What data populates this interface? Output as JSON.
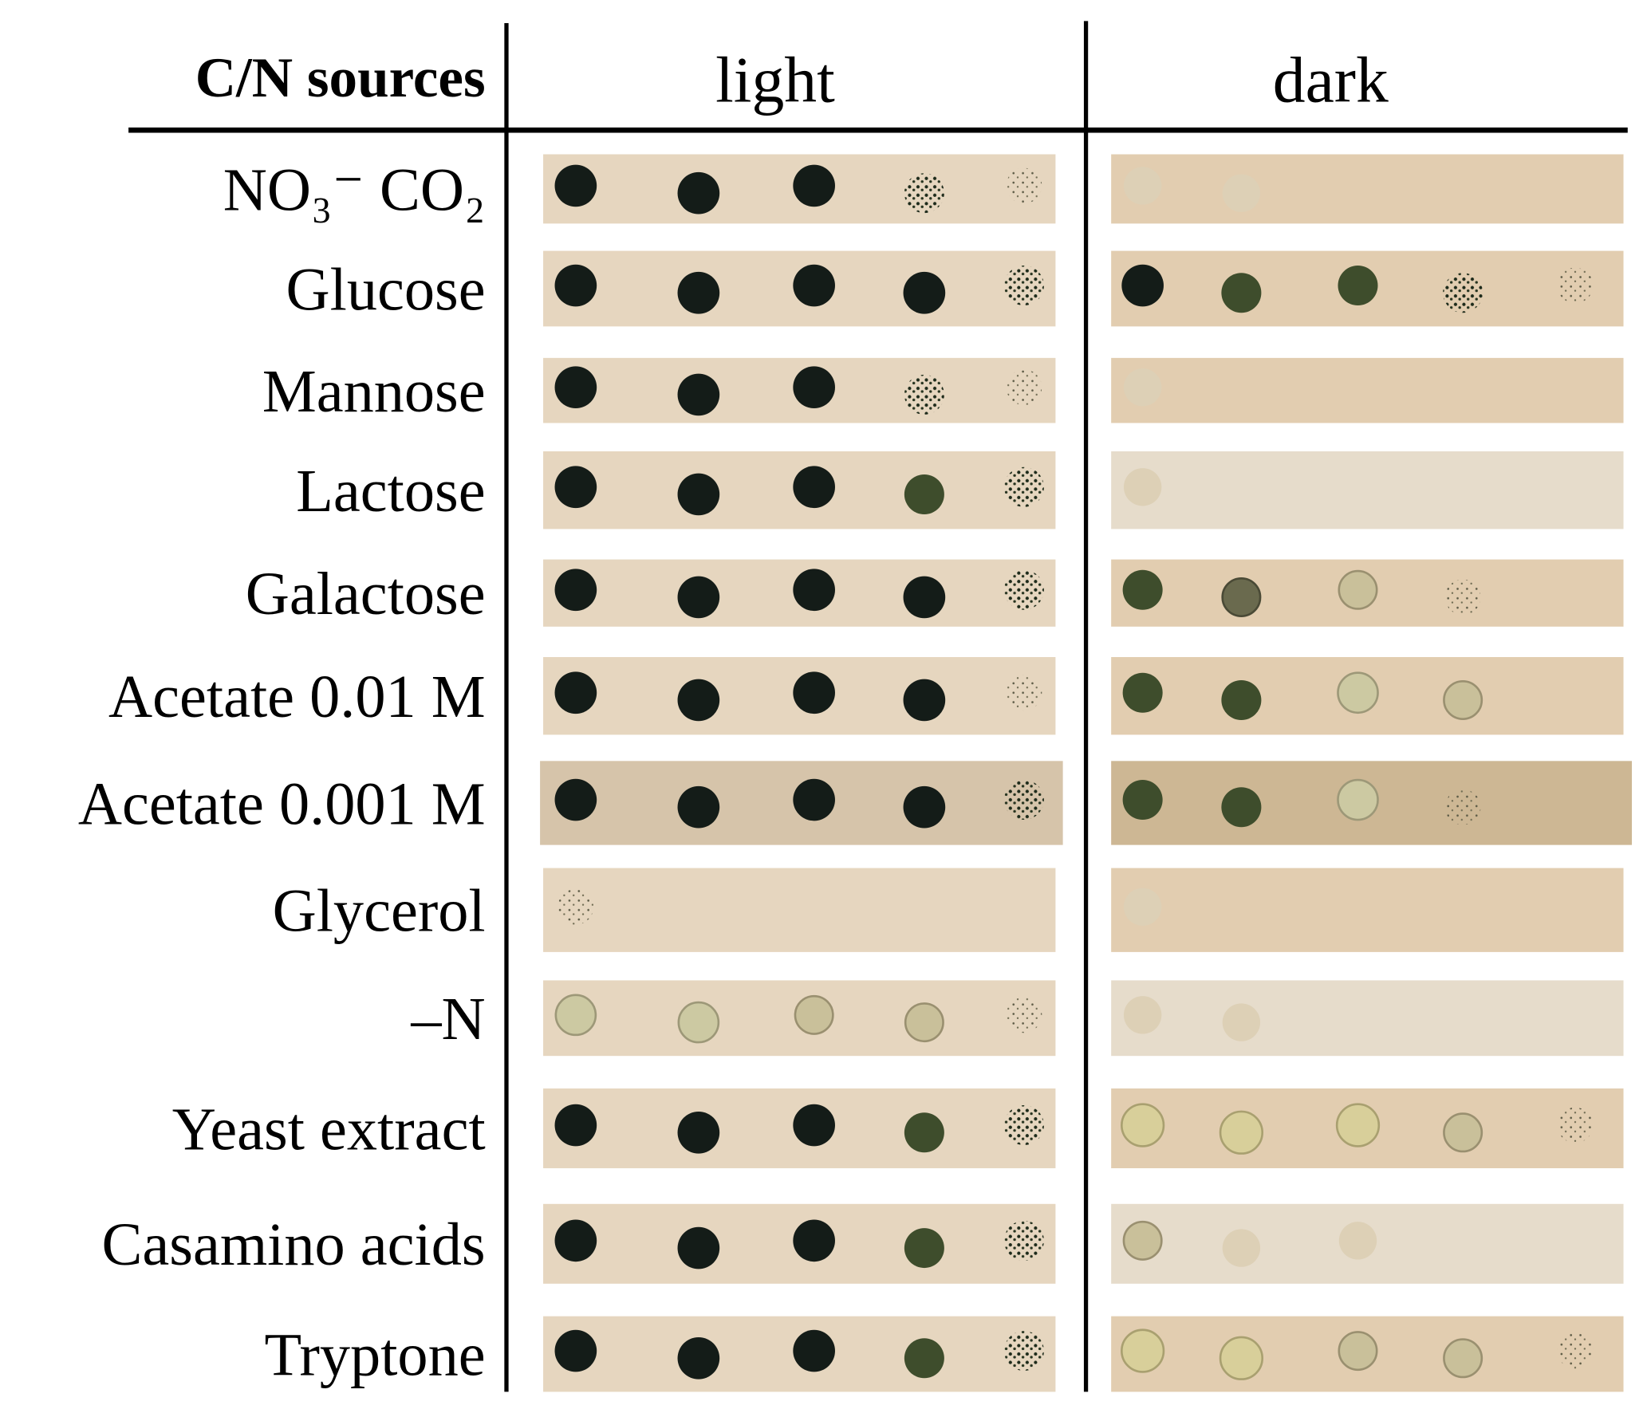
{
  "header": {
    "sources": "C/N sources",
    "light": "light",
    "dark": "dark"
  },
  "rows": [
    {
      "label": "NO₃⁻ CO₂"
    },
    {
      "label": "Glucose"
    },
    {
      "label": "Mannose"
    },
    {
      "label": "Lactose"
    },
    {
      "label": "Galactose"
    },
    {
      "label": "Acetate 0.01 M"
    },
    {
      "label": "Acetate 0.001 M"
    },
    {
      "label": "Glycerol"
    },
    {
      "label": "–N"
    },
    {
      "label": "Yeast extract"
    },
    {
      "label": "Casamino acids"
    },
    {
      "label": "Tryptone"
    }
  ]
}
